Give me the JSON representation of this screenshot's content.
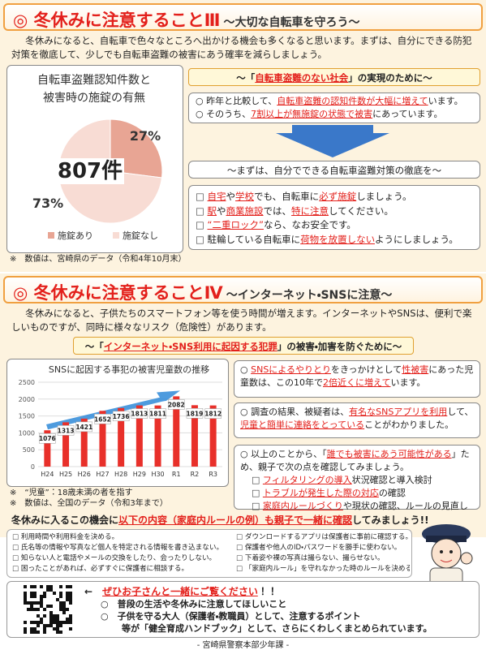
{
  "section1": {
    "title": "◎ 冬休みに注意することⅢ",
    "subtitle": "～大切な自転車を守ろう～",
    "intro": "冬休みになると、自転車で色々なところへ出かける機会も多くなると思います。まずは、自分にできる防犯対策を徹底して、少しでも自転車盗難の被害にあう確率を減らしましょう。",
    "banner": [
      {
        "t": "～「"
      },
      {
        "t": "自転車盗難のない社会",
        "e": true
      },
      {
        "t": "」の実現のために～"
      }
    ],
    "facts": [
      [
        {
          "t": "○ 昨年と比較して、"
        },
        {
          "t": "自転車盗難の認知件数が大幅に増えて",
          "e": true
        },
        {
          "t": "います。"
        }
      ],
      [
        {
          "t": "○ そのうち、"
        },
        {
          "t": "7割以上が無施錠の状態で被害",
          "e": true
        },
        {
          "t": "にあっています。"
        }
      ]
    ],
    "action": "～まずは、自分でできる自転車盗難対策の徹底を～",
    "checks": [
      [
        {
          "t": "自宅",
          "e": true
        },
        {
          "t": "や"
        },
        {
          "t": "学校",
          "e": true
        },
        {
          "t": "でも、自転車に"
        },
        {
          "t": "必ず施錠",
          "e": true
        },
        {
          "t": "しましょう。"
        }
      ],
      [
        {
          "t": "駅",
          "e": true
        },
        {
          "t": "や"
        },
        {
          "t": "商業施設",
          "e": true
        },
        {
          "t": "では、"
        },
        {
          "t": "特に注意",
          "e": true
        },
        {
          "t": "してください。"
        }
      ],
      [
        {
          "t": "“二重ロック”",
          "e": true
        },
        {
          "t": "なら、なお安全です。"
        }
      ],
      [
        {
          "t": "駐輪している自転車に"
        },
        {
          "t": "荷物を放置しない",
          "e": true
        },
        {
          "t": "ようにしましょう。"
        }
      ]
    ],
    "note": "※　数値は、宮崎県のデータ（令和4年10月末）"
  },
  "chart_data": [
    {
      "type": "pie",
      "title": [
        "自転車盗難認知件数と",
        "被害時の施錠の有無"
      ],
      "categories": [
        "施錠あり",
        "施錠なし"
      ],
      "values": [
        27,
        73
      ],
      "value_labels": [
        "27%",
        "73%"
      ],
      "colors": [
        "#e8a594",
        "#f8dcd4"
      ],
      "center_label": "807件",
      "legend": "bottom"
    },
    {
      "type": "bar",
      "title": "SNSに起因する事犯の被害児童数の推移",
      "categories": [
        "H24",
        "H25",
        "H26",
        "H27",
        "H28",
        "H29",
        "H30",
        "R1",
        "R2",
        "R3"
      ],
      "values": [
        1076,
        1313,
        1421,
        1652,
        1736,
        1813,
        1811,
        2082,
        1819,
        1812
      ],
      "color": "#e8302a",
      "ylim": [
        0,
        2500
      ],
      "yticks": [
        0,
        500,
        1000,
        1500,
        2000,
        2500
      ],
      "grid": true
    }
  ],
  "section2": {
    "title": "◎ 冬休みに注意することⅣ",
    "subtitle": "～インターネット・SNSに注意～",
    "intro": "冬休みになると、子供たちのスマートフォン等を使う時間が増えます。インターネットやSNSは、便利で楽しいものですが、同時に様々なリスク（危険性）があります。",
    "banner": [
      {
        "t": "～「"
      },
      {
        "t": "インターネット・SNS利用に起因する犯罪",
        "e": true
      },
      {
        "t": "」の被害・加害を防ぐために～"
      }
    ],
    "notes": [
      "※　“児童”：18歳未満の者を指す",
      "※　数値は、全国のデータ（令和3年まで）"
    ],
    "points": [
      [
        {
          "t": "○ "
        },
        {
          "t": "SNSによるやりとり",
          "e": true
        },
        {
          "t": "をきっかけとして"
        },
        {
          "t": "性被害",
          "e": true
        },
        {
          "t": "にあった児童数は、この10年で"
        },
        {
          "t": "2倍近くに増えて",
          "e": true
        },
        {
          "t": "います。"
        }
      ],
      [
        {
          "t": "○ 調査の結果、被疑者は、"
        },
        {
          "t": "有名なSNSアプリを利用",
          "e": true
        },
        {
          "t": "して、"
        },
        {
          "t": "児童と簡単に連絡をとっている",
          "e": true
        },
        {
          "t": "ことがわかりました。"
        }
      ],
      [
        {
          "t": "○ 以上のことから、「"
        },
        {
          "t": "誰でも被害にあう可能性がある",
          "e": true
        },
        {
          "t": "」ため、親子で次の点を確認してみましょう。"
        }
      ]
    ],
    "subchecks": [
      [
        {
          "t": "フィルタリングの導入",
          "e": true
        },
        {
          "t": "状況確認と導入検討"
        }
      ],
      [
        {
          "t": "トラブルが発生した際の対応",
          "e": true
        },
        {
          "t": "の確認"
        }
      ],
      [
        {
          "t": "家庭内ルールづくり",
          "e": true
        },
        {
          "t": "や現状の確認、ルールの見直し"
        }
      ]
    ],
    "call": [
      {
        "t": "冬休みに入るこの機会に"
      },
      {
        "t": "以下の内容（家庭内ルールの例）も親子で一緒に確認",
        "e": true
      },
      {
        "t": "してみましょう!!"
      }
    ],
    "rules_left": [
      "利用時間や利用料金を決める。",
      "氏名等の情報や写真など個人を特定される情報を書き込まない。",
      "知らない人と電話やメールの交換をしたり、会ったりしない。",
      "困ったことがあれば、必ずすぐに保護者に相談する。"
    ],
    "rules_right": [
      "ダウンロードするアプリは保護者に事前に確認する。",
      "保護者や他人のID・パスワードを勝手に使わない。",
      "下着姿や裸の写真は撮らない、撮らせない。",
      "「家庭内ルール」を守れなかった時のルールを決める。"
    ]
  },
  "footer": {
    "lead": [
      {
        "t": "←　"
      },
      {
        "t": "ぜひお子さんと一緒にご覧ください",
        "e": true
      },
      {
        "t": "！！"
      }
    ],
    "lines": [
      "○　普段の生活や冬休みに注意してほしいこと",
      "○　子供を守る大人（保護者・教職員）として、注意するポイント",
      "等が「健全育成ハンドブック」として、さらにくわしくまとめられています。"
    ],
    "org": "- 宮崎県警察本部少年課 -"
  }
}
